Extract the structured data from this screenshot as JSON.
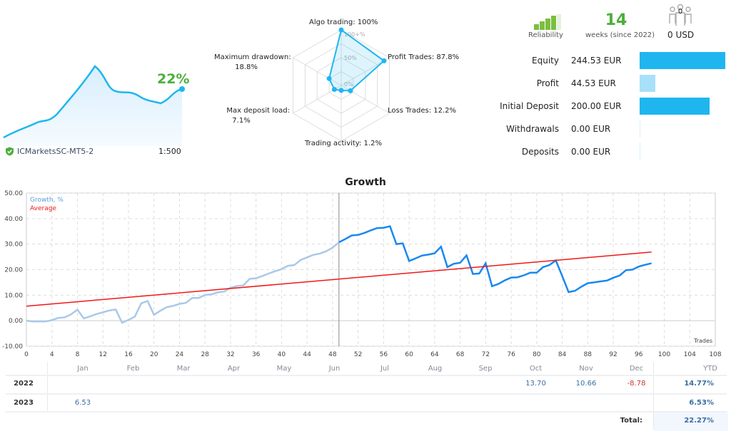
{
  "summary": {
    "growth_pct": "22%",
    "server": "ICMarketsSC-MT5-2",
    "leverage": "1:500"
  },
  "radar": {
    "scale_labels": [
      "100+%",
      "50%",
      "0%"
    ],
    "axes": [
      {
        "label": "Algo trading: 100%",
        "value": 100
      },
      {
        "label": "Profit Trades: 87.8%",
        "value": 87.8
      },
      {
        "label": "Loss Trades: 12.2%",
        "value": 12.2
      },
      {
        "label": "Trading activity: 1.2%",
        "value": 1.2
      },
      {
        "label": "Max deposit load:",
        "value_text": "7.1%",
        "value": 7.1
      },
      {
        "label": "Maximum drawdown:",
        "value_text": "18.8%",
        "value": 18.8
      }
    ]
  },
  "stats": {
    "reliability_label": "Reliability",
    "reliability_bars": 4,
    "weeks": "14",
    "weeks_label": "weeks (since 2022)",
    "subscribers": "0",
    "subscription_price": "0 USD"
  },
  "finance": [
    {
      "label": "Equity",
      "value": "244.53 EUR",
      "amount": 244.53
    },
    {
      "label": "Profit",
      "value": "44.53 EUR",
      "amount": 44.53
    },
    {
      "label": "Initial Deposit",
      "value": "200.00 EUR",
      "amount": 200
    },
    {
      "label": "Withdrawals",
      "value": "0.00 EUR",
      "amount": 0
    },
    {
      "label": "Deposits",
      "value": "0.00 EUR",
      "amount": 0
    }
  ],
  "colors": {
    "accent": "#1fb6f0",
    "growth_light": "#a9c9e8",
    "growth_dark": "#1a88f0",
    "average": "#f01818",
    "green": "#4caf3a",
    "negative": "#c0392b",
    "positive": "#3a6ea5"
  },
  "chart_data": {
    "type": "line",
    "title": "Growth",
    "xlabel": "Trades",
    "ylabel": "",
    "xlim": [
      0,
      108
    ],
    "ylim": [
      -10,
      50
    ],
    "grid": true,
    "legend": "top-left",
    "xticks": [
      0,
      4,
      8,
      12,
      16,
      20,
      24,
      28,
      32,
      36,
      40,
      44,
      48,
      52,
      56,
      60,
      64,
      68,
      72,
      76,
      80,
      84,
      88,
      92,
      96,
      100,
      104,
      108
    ],
    "yticks": [
      "50.00",
      "40.00",
      "30.00",
      "20.00",
      "10.00",
      "0.00",
      "-10.00"
    ],
    "highlight_from_trade": 49,
    "series": [
      {
        "name": "Growth, %",
        "values": [
          0,
          -0.3,
          -0.3,
          -0.3,
          0.2,
          1.1,
          1.3,
          2.5,
          4.3,
          0.9,
          1.7,
          2.6,
          3.3,
          4.0,
          4.4,
          -0.8,
          0.3,
          1.6,
          6.8,
          7.7,
          2.3,
          3.9,
          5.3,
          5.8,
          6.6,
          7.0,
          8.9,
          8.9,
          10.1,
          10.3,
          11.1,
          11.4,
          12.9,
          13.6,
          13.8,
          16.4,
          16.6,
          17.5,
          18.5,
          19.4,
          20.2,
          21.5,
          21.8,
          23.8,
          24.8,
          25.8,
          26.3,
          27.2,
          28.6,
          30.7,
          32.0,
          33.4,
          33.6,
          34.4,
          35.4,
          36.3,
          36.4,
          37.0,
          30.0,
          30.3,
          23.4,
          24.4,
          25.5,
          25.9,
          26.4,
          29.0,
          21.0,
          22.3,
          22.7,
          25.6,
          18.3,
          18.5,
          22.5,
          13.5,
          14.4,
          15.8,
          16.9,
          17.0,
          17.8,
          18.8,
          18.8,
          21.0,
          21.8,
          23.6,
          17.5,
          11.2,
          11.7,
          13.3,
          14.7,
          15.0,
          15.4,
          15.7,
          16.8,
          17.7,
          19.8,
          20.0,
          21.2,
          21.9,
          22.5
        ]
      },
      {
        "name": "Average",
        "x": [
          0,
          98
        ],
        "values": [
          5.7,
          26.9
        ]
      }
    ]
  },
  "monthly": {
    "months": [
      "Jan",
      "Feb",
      "Mar",
      "Apr",
      "May",
      "Jun",
      "Jul",
      "Aug",
      "Sep",
      "Oct",
      "Nov",
      "Dec"
    ],
    "ytd_label": "YTD",
    "rows": [
      {
        "year": "2022",
        "values": [
          "",
          "",
          "",
          "",
          "",
          "",
          "",
          "",
          "",
          "13.70",
          "10.66",
          "-8.78"
        ],
        "ytd": "14.77%"
      },
      {
        "year": "2023",
        "values": [
          "6.53",
          "",
          "",
          "",
          "",
          "",
          "",
          "",
          "",
          "",
          "",
          ""
        ],
        "ytd": "6.53%"
      }
    ],
    "total_label": "Total:",
    "total": "22.27%"
  }
}
